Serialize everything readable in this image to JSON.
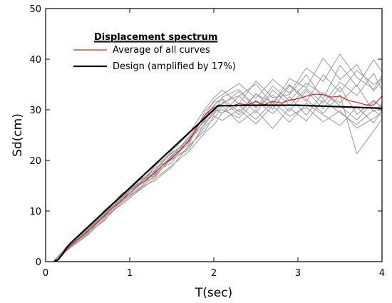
{
  "chart_data": {
    "type": "line",
    "xlabel": "T(sec)",
    "ylabel": "Sd(cm)",
    "xlim": [
      0,
      4
    ],
    "ylim": [
      0,
      50
    ],
    "x_ticks": [
      "0",
      "1",
      "2",
      "3",
      "4"
    ],
    "y_ticks": [
      "0",
      "10",
      "20",
      "30",
      "40",
      "50"
    ],
    "grid": false,
    "legend": {
      "title": "Displacement spectrum",
      "placement": "top-left",
      "entries": [
        {
          "label": "Average of all curves",
          "color": "#e02020"
        },
        {
          "label": "Design (amplified by 17%)",
          "color": "#000000"
        }
      ]
    },
    "series": [
      {
        "name": "Average of all curves",
        "color": "#e02020",
        "x": [
          0.1,
          0.15,
          0.2,
          0.3,
          0.4,
          0.5,
          0.6,
          0.7,
          0.8,
          0.9,
          1.0,
          1.1,
          1.2,
          1.3,
          1.4,
          1.5,
          1.6,
          1.7,
          1.8,
          1.9,
          2.0,
          2.1,
          2.2,
          2.3,
          2.4,
          2.5,
          2.6,
          2.7,
          2.8,
          2.9,
          3.0,
          3.1,
          3.2,
          3.3,
          3.4,
          3.5,
          3.6,
          3.7,
          3.8,
          3.9,
          4.0
        ],
        "y": [
          0.2,
          0.5,
          1.3,
          3.3,
          4.6,
          6.0,
          7.5,
          9.1,
          10.6,
          12.1,
          13.5,
          15.0,
          16.2,
          17.6,
          19.2,
          20.4,
          22.0,
          23.8,
          26.5,
          29.1,
          30.5,
          30.8,
          30.7,
          31.2,
          31.0,
          31.6,
          31.0,
          31.7,
          31.3,
          31.9,
          32.2,
          32.7,
          33.1,
          33.0,
          32.5,
          32.7,
          31.8,
          31.5,
          31.0,
          30.9,
          32.7
        ]
      },
      {
        "name": "Design (amplified by 17%)",
        "color": "#000000",
        "x": [
          0.1,
          0.15,
          0.2,
          0.25,
          0.3,
          2.05,
          2.5,
          3.0,
          3.5,
          4.0
        ],
        "y": [
          0.0,
          0.4,
          1.5,
          2.8,
          3.7,
          30.8,
          30.9,
          30.9,
          30.6,
          30.3
        ]
      }
    ],
    "individual_curves_color": "#9a9a9a",
    "individual_curves": [
      {
        "x": [
          0.1,
          0.3,
          0.5,
          0.7,
          0.9,
          1.1,
          1.3,
          1.5,
          1.7,
          1.9,
          2.0,
          2.1,
          2.3,
          2.5,
          2.7,
          2.9,
          3.1,
          3.3,
          3.5,
          3.7,
          3.9,
          4.0
        ],
        "y": [
          0.2,
          3.5,
          6.3,
          9.6,
          12.4,
          15.6,
          17.3,
          21.1,
          23.1,
          29.8,
          31.5,
          31.9,
          29.0,
          33.2,
          30.1,
          34.8,
          31.6,
          36.9,
          33.5,
          37.8,
          35.0,
          36.1
        ]
      },
      {
        "x": [
          0.1,
          0.3,
          0.5,
          0.7,
          0.9,
          1.1,
          1.3,
          1.5,
          1.7,
          1.9,
          2.0,
          2.1,
          2.3,
          2.5,
          2.7,
          2.9,
          3.1,
          3.3,
          3.5,
          3.7,
          3.9,
          4.0
        ],
        "y": [
          0.2,
          2.9,
          5.4,
          8.3,
          11.5,
          14.2,
          17.8,
          19.5,
          24.1,
          27.2,
          29.4,
          32.5,
          34.0,
          30.6,
          32.9,
          29.7,
          33.8,
          30.2,
          34.5,
          29.1,
          31.9,
          30.4
        ]
      },
      {
        "x": [
          0.1,
          0.3,
          0.5,
          0.7,
          0.9,
          1.1,
          1.3,
          1.5,
          1.7,
          1.9,
          2.0,
          2.1,
          2.3,
          2.5,
          2.7,
          2.9,
          3.1,
          3.3,
          3.5,
          3.7,
          3.9,
          4.0
        ],
        "y": [
          0.2,
          3.8,
          5.9,
          9.9,
          12.0,
          16.3,
          16.9,
          20.6,
          23.8,
          28.1,
          30.2,
          29.3,
          32.7,
          35.1,
          31.0,
          36.2,
          34.4,
          40.2,
          36.0,
          38.9,
          33.7,
          35.8
        ]
      },
      {
        "x": [
          0.1,
          0.3,
          0.5,
          0.7,
          0.9,
          1.1,
          1.3,
          1.5,
          1.7,
          1.9,
          2.0,
          2.1,
          2.3,
          2.5,
          2.7,
          2.9,
          3.1,
          3.3,
          3.5,
          3.7,
          3.9,
          4.0
        ],
        "y": [
          0.2,
          3.1,
          6.8,
          8.8,
          13.1,
          14.9,
          18.6,
          20.1,
          22.5,
          26.8,
          28.2,
          30.8,
          27.4,
          29.9,
          26.3,
          30.4,
          27.8,
          31.9,
          29.4,
          27.1,
          30.0,
          28.6
        ]
      },
      {
        "x": [
          0.1,
          0.3,
          0.5,
          0.7,
          0.9,
          1.1,
          1.3,
          1.5,
          1.7,
          1.9,
          2.0,
          2.1,
          2.3,
          2.5,
          2.7,
          2.9,
          3.1,
          3.3,
          3.5,
          3.7,
          3.9,
          4.0
        ],
        "y": [
          0.2,
          3.6,
          6.0,
          10.2,
          12.8,
          15.3,
          18.1,
          21.9,
          25.2,
          30.3,
          32.4,
          33.9,
          31.2,
          35.7,
          32.4,
          33.0,
          36.9,
          32.1,
          38.8,
          34.6,
          39.9,
          37.5
        ]
      },
      {
        "x": [
          0.1,
          0.3,
          0.5,
          0.7,
          0.9,
          1.1,
          1.3,
          1.5,
          1.7,
          1.9,
          2.0,
          2.1,
          2.3,
          2.5,
          2.7,
          2.9,
          3.1,
          3.3,
          3.5,
          3.7,
          3.9,
          4.0
        ],
        "y": [
          0.2,
          3.2,
          5.6,
          9.0,
          11.2,
          13.9,
          16.4,
          19.0,
          21.7,
          25.6,
          27.0,
          29.4,
          30.9,
          28.1,
          31.6,
          28.7,
          30.5,
          27.6,
          29.8,
          26.4,
          28.3,
          29.5
        ]
      },
      {
        "x": [
          0.1,
          0.3,
          0.5,
          0.7,
          0.9,
          1.1,
          1.3,
          1.5,
          1.7,
          1.9,
          2.0,
          2.1,
          2.3,
          2.5,
          2.7,
          2.9,
          3.1,
          3.3,
          3.5,
          3.7,
          3.9,
          4.0
        ],
        "y": [
          0.2,
          3.4,
          6.5,
          9.3,
          12.6,
          15.9,
          17.5,
          20.8,
          24.6,
          28.9,
          30.8,
          31.1,
          33.6,
          30.3,
          34.7,
          31.8,
          35.3,
          33.0,
          31.4,
          34.9,
          29.6,
          31.2
        ]
      },
      {
        "x": [
          0.1,
          0.3,
          0.5,
          0.7,
          0.9,
          1.1,
          1.3,
          1.5,
          1.7,
          1.9,
          2.0,
          2.1,
          2.3,
          2.5,
          2.7,
          2.9,
          3.1,
          3.3,
          3.5,
          3.7,
          3.9,
          4.0
        ],
        "y": [
          0.2,
          2.8,
          5.2,
          8.6,
          11.8,
          14.5,
          16.0,
          18.7,
          22.9,
          26.0,
          28.8,
          27.9,
          30.1,
          27.2,
          30.8,
          27.5,
          31.3,
          29.0,
          26.9,
          30.6,
          27.4,
          29.9
        ]
      },
      {
        "x": [
          0.1,
          0.3,
          0.5,
          0.7,
          0.9,
          1.1,
          1.3,
          1.5,
          1.7,
          1.9,
          2.0,
          2.1,
          2.3,
          2.5,
          2.7,
          2.9,
          3.1,
          3.3,
          3.5,
          3.7,
          3.9,
          4.0
        ],
        "y": [
          0.2,
          3.7,
          6.1,
          9.4,
          13.4,
          15.1,
          18.9,
          21.4,
          24.0,
          29.0,
          31.8,
          33.0,
          35.2,
          32.3,
          36.0,
          33.3,
          38.3,
          35.6,
          41.0,
          36.4,
          34.1,
          36.7
        ]
      },
      {
        "x": [
          0.1,
          0.3,
          0.5,
          0.7,
          0.9,
          1.1,
          1.3,
          1.5,
          1.7,
          1.9,
          2.0,
          2.1,
          2.3,
          2.5,
          2.7,
          2.9,
          3.1,
          3.3,
          3.5,
          3.7,
          3.9,
          4.0
        ],
        "y": [
          0.2,
          3.0,
          5.8,
          8.1,
          12.2,
          14.0,
          17.1,
          20.3,
          22.1,
          27.5,
          29.8,
          30.0,
          28.4,
          31.9,
          29.2,
          32.6,
          28.9,
          33.4,
          30.8,
          28.0,
          31.7,
          30.6
        ]
      },
      {
        "x": [
          0.1,
          0.3,
          0.5,
          0.7,
          0.9,
          1.1,
          1.3,
          1.5,
          1.7,
          1.9,
          2.0,
          2.1,
          2.3,
          2.5,
          2.7,
          2.9,
          3.1,
          3.3,
          3.5,
          3.7,
          3.9,
          4.0
        ],
        "y": [
          0.2,
          3.3,
          6.6,
          9.7,
          11.9,
          16.0,
          17.9,
          21.6,
          23.5,
          28.4,
          30.9,
          32.2,
          29.6,
          33.1,
          31.4,
          35.0,
          32.0,
          29.3,
          32.9,
          21.3,
          25.8,
          28.2
        ]
      },
      {
        "x": [
          0.1,
          0.3,
          0.5,
          0.7,
          0.9,
          1.1,
          1.3,
          1.5,
          1.7,
          1.9,
          2.0,
          2.1,
          2.3,
          2.5,
          2.7,
          2.9,
          3.1,
          3.3,
          3.5,
          3.7,
          3.9,
          4.0
        ],
        "y": [
          0.2,
          3.5,
          6.2,
          8.9,
          12.7,
          15.4,
          16.6,
          20.9,
          24.4,
          27.8,
          29.1,
          31.4,
          32.8,
          29.4,
          33.9,
          30.9,
          34.2,
          31.3,
          35.5,
          32.8,
          37.2,
          34.0
        ]
      }
    ]
  }
}
